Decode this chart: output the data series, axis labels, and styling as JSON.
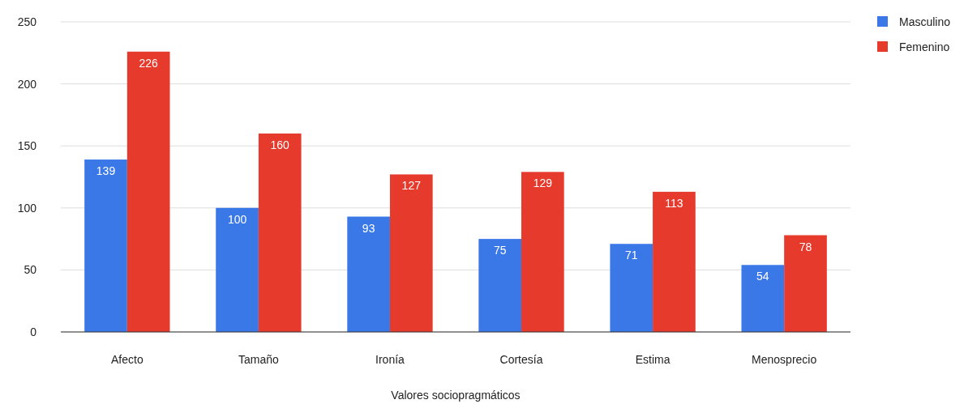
{
  "chart_data": {
    "type": "bar",
    "xlabel": "Valores sociopragmáticos",
    "categories": [
      "Afecto",
      "Tamaño",
      "Ironía",
      "Cortesía",
      "Estima",
      "Menosprecio"
    ],
    "series": [
      {
        "name": "Masculino",
        "color": "#3b78e7",
        "values": [
          139,
          100,
          93,
          75,
          71,
          54
        ]
      },
      {
        "name": "Femenino",
        "color": "#e53a2c",
        "values": [
          226,
          160,
          127,
          129,
          113,
          78
        ]
      }
    ],
    "ylim": [
      0,
      250
    ],
    "yticks": [
      0,
      50,
      100,
      150,
      200,
      250
    ],
    "grid": "y",
    "legend": "top right",
    "data_labels": true
  }
}
